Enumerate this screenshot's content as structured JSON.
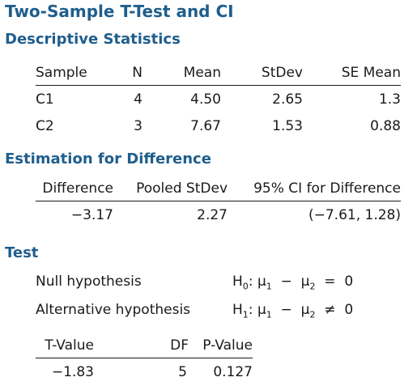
{
  "title": "Two-Sample T-Test and CI",
  "descriptive": {
    "heading": "Descriptive Statistics",
    "columns": [
      "Sample",
      "N",
      "Mean",
      "StDev",
      "SE Mean"
    ],
    "rows": [
      [
        "C1",
        "4",
        "4.50",
        "2.65",
        "1.3"
      ],
      [
        "C2",
        "3",
        "7.67",
        "1.53",
        "0.88"
      ]
    ]
  },
  "estimation": {
    "heading": "Estimation for Difference",
    "columns": [
      "Difference",
      "Pooled StDev",
      "95% CI for Difference"
    ],
    "row": [
      "−3.17",
      "2.27",
      "(−7.61, 1.28)"
    ]
  },
  "test": {
    "heading": "Test",
    "null_label": "Null hypothesis",
    "null_expr": {
      "h": "H",
      "h_sub": "0",
      "colon": ":",
      "mu1": "μ",
      "mu1_sub": "1",
      "minus": "−",
      "mu2": "μ",
      "mu2_sub": "2",
      "rel": "=",
      "value": "0"
    },
    "alt_label": "Alternative hypothesis",
    "alt_expr": {
      "h": "H",
      "h_sub": "1",
      "colon": ":",
      "mu1": "μ",
      "mu1_sub": "1",
      "minus": "−",
      "mu2": "μ",
      "mu2_sub": "2",
      "rel": "≠",
      "value": "0"
    },
    "columns": [
      "T-Value",
      "DF",
      "P-Value"
    ],
    "row": [
      "−1.83",
      "5",
      "0.127"
    ]
  }
}
